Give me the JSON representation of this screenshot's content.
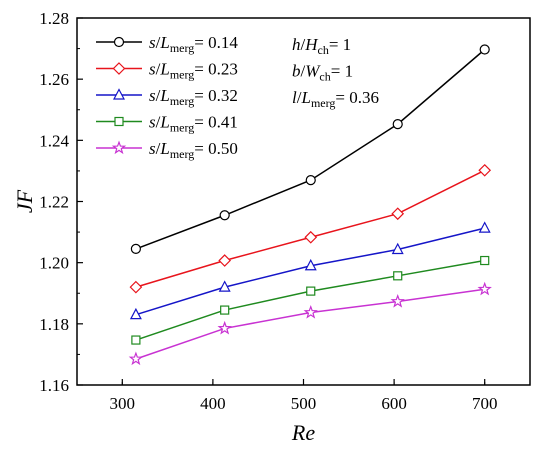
{
  "chart_data": {
    "type": "line",
    "xlabel": "Re",
    "ylabel": "JF",
    "xlim": [
      250,
      750
    ],
    "ylim": [
      1.16,
      1.28
    ],
    "xticks": [
      300,
      400,
      500,
      600,
      700
    ],
    "xtick_labels": [
      "300",
      "400",
      "500",
      "600",
      "700"
    ],
    "yticks": [
      1.16,
      1.18,
      1.2,
      1.22,
      1.24,
      1.26,
      1.28
    ],
    "ytick_labels": [
      "1.16",
      "1.18",
      "1.20",
      "1.22",
      "1.24",
      "1.26",
      "1.28"
    ],
    "grid": false,
    "legend_position": "top-left",
    "x": [
      315,
      413,
      508,
      604,
      700
    ],
    "series": [
      {
        "legend": "s/Lmerg= 0.14",
        "label_prefix": "s/L",
        "label_sub": "merg",
        "label_value": "= 0.14",
        "color": "#000000",
        "marker": "circle",
        "values": [
          1.2045,
          1.2155,
          1.227,
          1.2453,
          1.2697
        ]
      },
      {
        "legend": "s/Lmerg= 0.23",
        "label_prefix": "s/L",
        "label_sub": "merg",
        "label_value": "= 0.23",
        "color": "#e8141c",
        "marker": "diamond",
        "values": [
          1.192,
          1.2007,
          1.2083,
          1.216,
          1.2302
        ]
      },
      {
        "legend": "s/Lmerg= 0.32",
        "label_prefix": "s/L",
        "label_sub": "merg",
        "label_value": "= 0.32",
        "color": "#1515c8",
        "marker": "triangle",
        "values": [
          1.183,
          1.192,
          1.199,
          1.2043,
          1.2113
        ]
      },
      {
        "legend": "s/Lmerg= 0.41",
        "label_prefix": "s/L",
        "label_sub": "merg",
        "label_value": "= 0.41",
        "color": "#1f8a1f",
        "marker": "square",
        "values": [
          1.1747,
          1.1845,
          1.1907,
          1.1957,
          1.2007
        ]
      },
      {
        "legend": "s/Lmerg= 0.50",
        "label_prefix": "s/L",
        "label_sub": "merg",
        "label_value": "= 0.50",
        "color": "#c832d2",
        "marker": "star",
        "values": [
          1.1685,
          1.1785,
          1.1837,
          1.1873,
          1.1913
        ]
      }
    ],
    "annotations": [
      {
        "text": "h/Hch= 1",
        "prefix": "h/H",
        "sub": "ch",
        "value": "= 1"
      },
      {
        "text": "b/Wch= 1",
        "prefix": "b/W",
        "sub": "ch",
        "value": "= 1"
      },
      {
        "text": "l/Lmerg= 0.36",
        "prefix": "l/L",
        "sub": "merg",
        "value": "= 0.36"
      }
    ]
  }
}
